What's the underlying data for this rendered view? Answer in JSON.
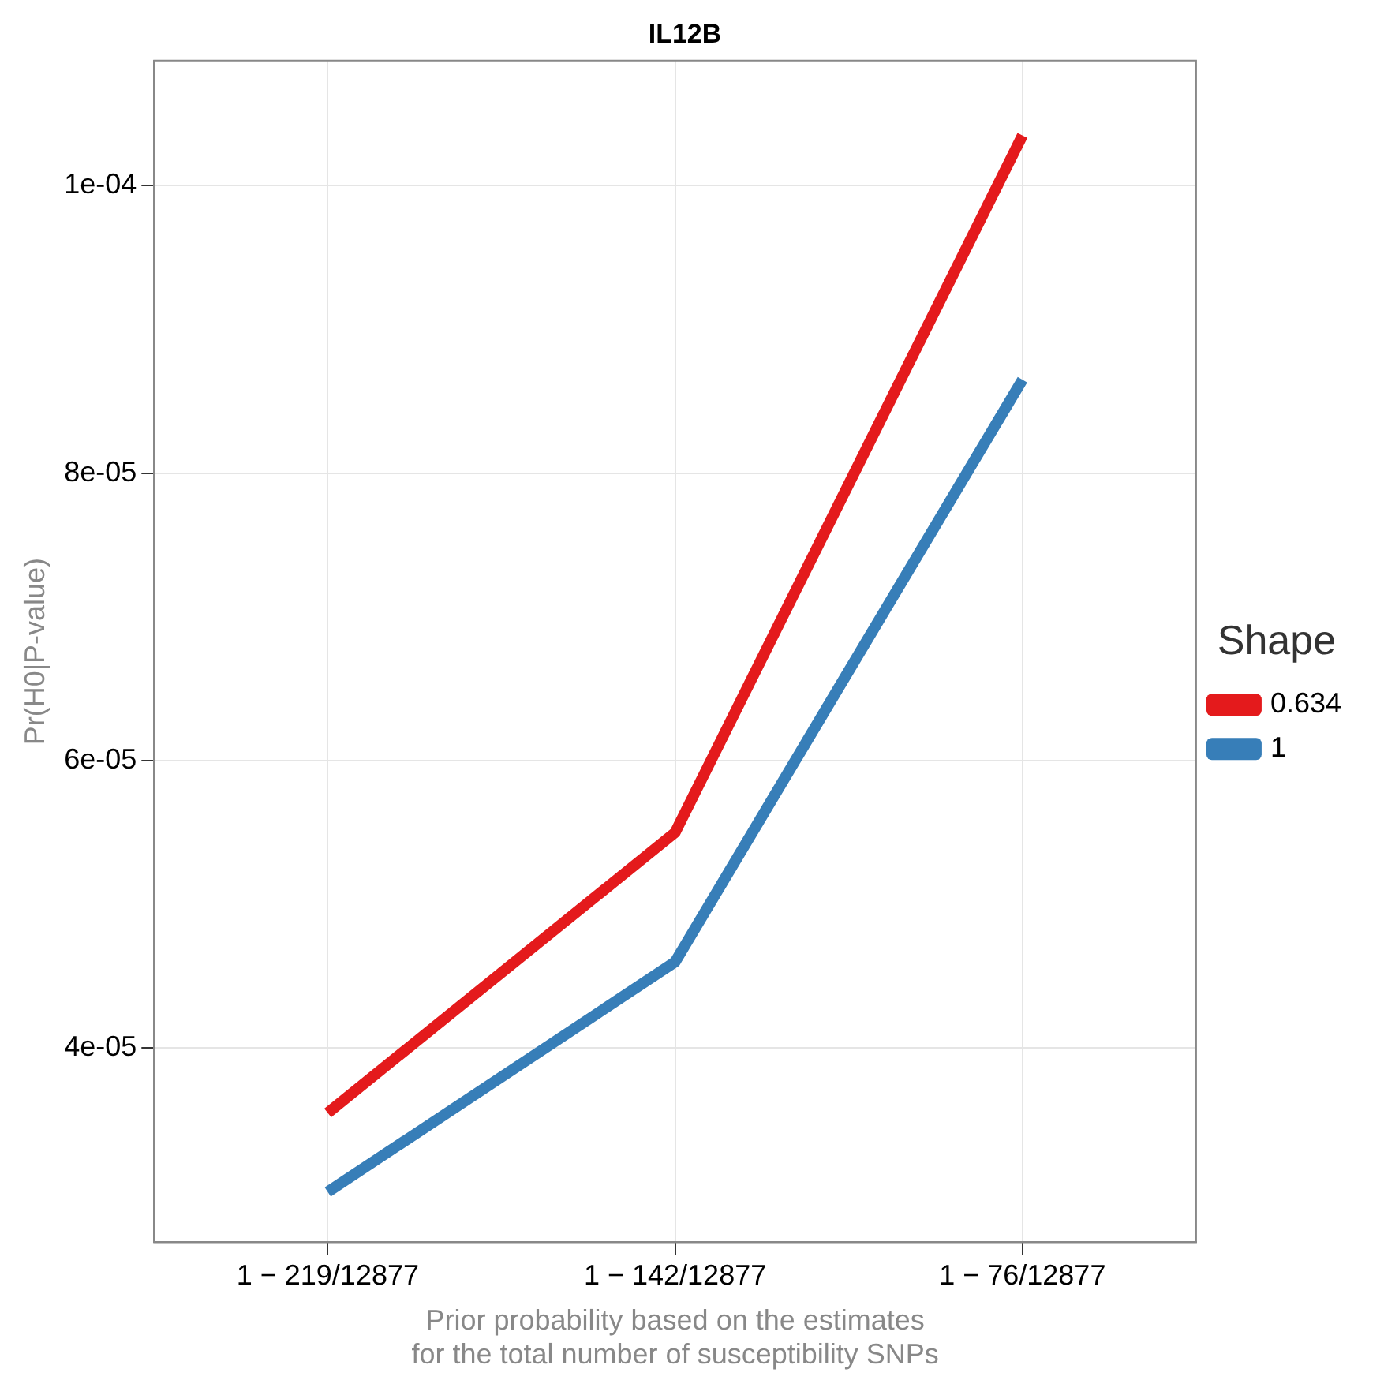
{
  "chart_data": {
    "type": "line",
    "title": "IL12B",
    "xlabel": "Prior probability based on the estimates\nfor the total number of susceptibility SNPs",
    "ylabel": "Pr(H0|P-value)",
    "legend_title": "Shape",
    "categories": [
      "1 − 219/12877",
      "1 − 142/12877",
      "1 − 76/12877"
    ],
    "series": [
      {
        "name": "0.634",
        "color": "#e41a1c",
        "values": [
          3.55e-05,
          5.5e-05,
          0.0001035
        ]
      },
      {
        "name": "1",
        "color": "#377eb8",
        "values": [
          3e-05,
          4.6e-05,
          8.65e-05
        ]
      }
    ],
    "ylim": [
      2.65e-05,
      0.0001087
    ],
    "yticks": [
      {
        "value": 4e-05,
        "label": "4e-05"
      },
      {
        "value": 6e-05,
        "label": "6e-05"
      },
      {
        "value": 8e-05,
        "label": "8e-05"
      },
      {
        "value": 0.0001,
        "label": "1e-04"
      }
    ],
    "grid": true,
    "legend": "right",
    "marker": "none",
    "line_style": "solid"
  }
}
